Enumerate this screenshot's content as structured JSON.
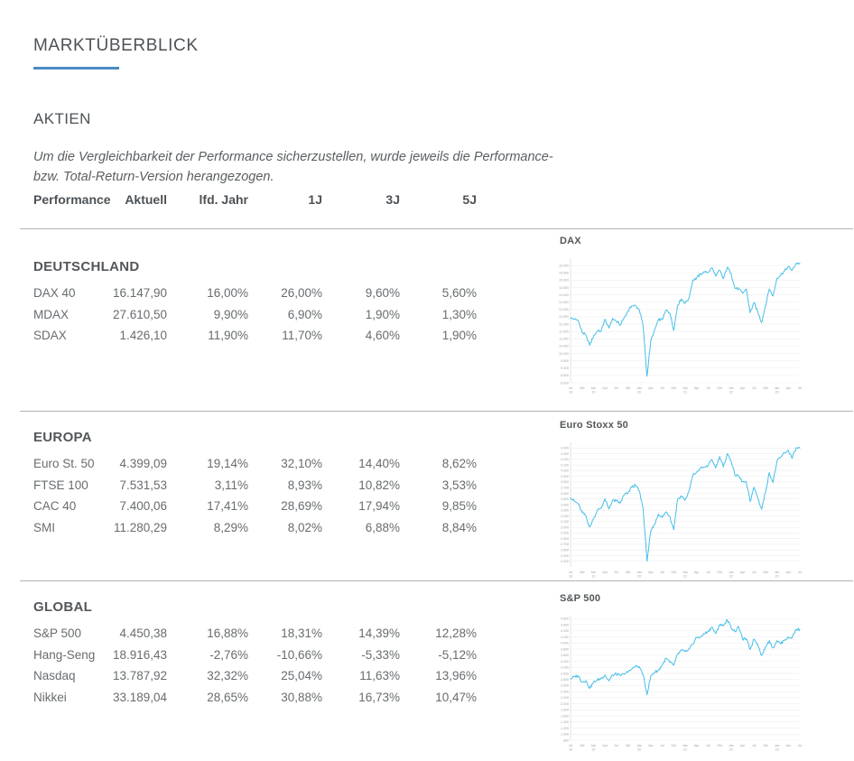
{
  "page": {
    "title": "MARKTÜBERBLICK"
  },
  "aktien": {
    "title": "AKTIEN",
    "note_line1": "Um die Vergleichbarkeit der Performance sicherzustellen, wurde jeweils die Performance-",
    "note_line2": "bzw. Total-Return-Version herangezogen."
  },
  "table": {
    "headers": [
      "Performance",
      "Aktuell",
      "lfd. Jahr",
      "1J",
      "3J",
      "5J"
    ],
    "groups": [
      {
        "name": "DEUTSCHLAND",
        "rows": [
          {
            "label": "DAX 40",
            "values": [
              "16.147,90",
              "16,00%",
              "26,00%",
              "9,60%",
              "5,60%"
            ]
          },
          {
            "label": "MDAX",
            "values": [
              "27.610,50",
              "9,90%",
              "6,90%",
              "1,90%",
              "1,30%"
            ]
          },
          {
            "label": "SDAX",
            "values": [
              "1.426,10",
              "11,90%",
              "11,70%",
              "4,60%",
              "1,90%"
            ]
          }
        ]
      },
      {
        "name": "EUROPA",
        "rows": [
          {
            "label": "Euro St. 50",
            "values": [
              "4.399,09",
              "19,14%",
              "32,10%",
              "14,40%",
              "8,62%"
            ]
          },
          {
            "label": "FTSE 100",
            "values": [
              "7.531,53",
              "3,11%",
              "8,93%",
              "10,82%",
              "3,53%"
            ]
          },
          {
            "label": "CAC 40",
            "values": [
              "7.400,06",
              "17,41%",
              "28,69%",
              "17,94%",
              "9,85%"
            ]
          },
          {
            "label": "SMI",
            "values": [
              "11.280,29",
              "8,29%",
              "8,02%",
              "6,88%",
              "8,84%"
            ]
          }
        ]
      },
      {
        "name": "GLOBAL",
        "rows": [
          {
            "label": "S&P 500",
            "values": [
              "4.450,38",
              "16,88%",
              "18,31%",
              "14,39%",
              "12,28%"
            ]
          },
          {
            "label": "Hang-Seng",
            "values": [
              "18.916,43",
              "-2,76%",
              "-10,66%",
              "-5,33%",
              "-5,12%"
            ]
          },
          {
            "label": "Nasdaq",
            "values": [
              "13.787,92",
              "32,32%",
              "25,04%",
              "11,63%",
              "13,96%"
            ]
          },
          {
            "label": "Nikkei",
            "values": [
              "33.189,04",
              "28,65%",
              "30,88%",
              "16,73%",
              "10,47%"
            ]
          }
        ]
      }
    ]
  },
  "colors": {
    "accent_blue": "#4a8bc4",
    "line_blue": "#46bfe8",
    "divider_gray": "#b2b2b2",
    "grid_gray": "#ededed",
    "tick_gray": "#a0a4a7"
  },
  "timeline_ticks": [
    {
      "m": "Jul",
      "y": "18"
    },
    {
      "m": "Okt"
    },
    {
      "m": "Jan",
      "y": "19"
    },
    {
      "m": "Apr"
    },
    {
      "m": "Jul"
    },
    {
      "m": "Okt"
    },
    {
      "m": "Jan",
      "y": "20"
    },
    {
      "m": "Apr"
    },
    {
      "m": "Jul"
    },
    {
      "m": "Okt"
    },
    {
      "m": "Jan",
      "y": "21"
    },
    {
      "m": "Apr"
    },
    {
      "m": "Jul"
    },
    {
      "m": "Okt"
    },
    {
      "m": "Jan",
      "y": "22"
    },
    {
      "m": "Apr"
    },
    {
      "m": "Jul"
    },
    {
      "m": "Okt"
    },
    {
      "m": "Jan",
      "y": "23"
    },
    {
      "m": "Apr"
    },
    {
      "m": "Jul"
    }
  ],
  "chart_data": [
    {
      "type": "line",
      "title": "DAX",
      "xlabel": "",
      "ylabel": "",
      "period": "Jul 2018 - Jul 2023, monatlich",
      "ylim": [
        8000,
        16500
      ],
      "grid": true,
      "y_ticks": [
        "16.000",
        "15.500",
        "15.000",
        "14.500",
        "14.000",
        "13.500",
        "13.000",
        "12.500",
        "12.000",
        "11.500",
        "11.000",
        "10.500",
        "10.000",
        "9.500",
        "9.000",
        "8.500",
        "8.000"
      ],
      "values": [
        12400,
        12350,
        12250,
        11450,
        11250,
        10560,
        11170,
        11520,
        11530,
        12340,
        11730,
        12400,
        12190,
        11940,
        12430,
        12870,
        13240,
        13250,
        12980,
        11890,
        8440,
        10860,
        11590,
        12310,
        12310,
        12950,
        12760,
        11560,
        13290,
        13720,
        13430,
        13790,
        15010,
        15140,
        15420,
        15530,
        15540,
        15840,
        15260,
        15690,
        15100,
        15880,
        15470,
        14460,
        14410,
        14100,
        14390,
        12780,
        13480,
        12830,
        12110,
        13250,
        14400,
        13920,
        15130,
        15370,
        15630,
        15920,
        15660,
        16150,
        16150
      ]
    },
    {
      "type": "line",
      "title": "Euro Stoxx 50",
      "xlabel": "",
      "ylabel": "",
      "period": "Jul 2018 - Jul 2023, monatlich",
      "ylim": [
        2300,
        4500
      ],
      "grid": true,
      "y_ticks": [
        "4.400",
        "4.300",
        "4.200",
        "4.100",
        "4.000",
        "3.900",
        "3.800",
        "3.700",
        "3.600",
        "3.500",
        "3.400",
        "3.300",
        "3.200",
        "3.100",
        "3.000",
        "2.900",
        "2.800",
        "2.700",
        "2.600",
        "2.500",
        "2.400"
      ],
      "values": [
        3525,
        3460,
        3414,
        3264,
        3204,
        3001,
        3147,
        3298,
        3340,
        3502,
        3323,
        3474,
        3467,
        3427,
        3569,
        3604,
        3710,
        3745,
        3641,
        3329,
        2400,
        2928,
        3050,
        3234,
        3174,
        3273,
        3193,
        2958,
        3493,
        3553,
        3481,
        3636,
        3919,
        3974,
        4039,
        4064,
        4089,
        4196,
        4048,
        4251,
        4063,
        4298,
        4175,
        3924,
        3903,
        3803,
        3789,
        3455,
        3708,
        3517,
        3318,
        3618,
        3965,
        3794,
        4163,
        4238,
        4315,
        4359,
        4218,
        4399,
        4399
      ]
    },
    {
      "type": "line",
      "title": "S&P 500",
      "xlabel": "",
      "ylabel": "",
      "period": "Jul 2018 - Jul 2023, monatlich",
      "ylim": [
        800,
        4900
      ],
      "grid": true,
      "y_ticks": [
        "4.800",
        "4.600",
        "4.400",
        "4.200",
        "4.000",
        "3.800",
        "3.600",
        "3.400",
        "3.200",
        "3.000",
        "2.800",
        "2.600",
        "2.400",
        "2.200",
        "2.000",
        "1.800",
        "1.600",
        "1.400",
        "1.200",
        "1.000",
        "800"
      ],
      "values": [
        2816,
        2902,
        2914,
        2712,
        2760,
        2507,
        2704,
        2784,
        2834,
        2946,
        2752,
        2942,
        2980,
        2926,
        2977,
        3038,
        3141,
        3231,
        3226,
        2954,
        2300,
        2912,
        3044,
        3100,
        3271,
        3500,
        3363,
        3270,
        3622,
        3756,
        3714,
        3811,
        3973,
        4181,
        4204,
        4298,
        4395,
        4523,
        4308,
        4605,
        4567,
        4766,
        4516,
        4374,
        4530,
        4132,
        4132,
        3785,
        4130,
        3955,
        3586,
        3872,
        4080,
        3840,
        4077,
        3970,
        4109,
        4169,
        4180,
        4450,
        4450
      ]
    }
  ]
}
